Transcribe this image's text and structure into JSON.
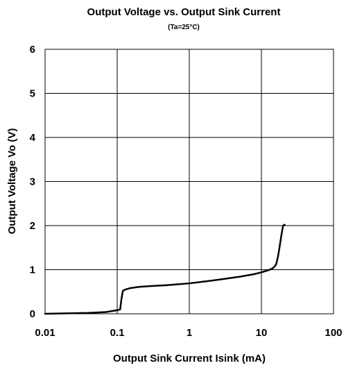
{
  "chart_data": {
    "type": "line",
    "title": "Output Voltage vs. Output Sink Current",
    "subtitle": "(Ta=25°C)",
    "xlabel": "Output Sink Current Isink (mA)",
    "ylabel": "Output Voltage Vo (V)",
    "x_scale": "log",
    "xlim": [
      0.01,
      100
    ],
    "ylim": [
      0,
      6
    ],
    "grid": true,
    "x_ticks": [
      "0.01",
      "0.1",
      "1",
      "10",
      "100"
    ],
    "y_ticks": [
      "0",
      "1",
      "2",
      "3",
      "4",
      "5",
      "6"
    ],
    "series": [
      {
        "x": [
          0.01,
          0.02,
          0.04,
          0.07,
          0.1,
          0.11,
          0.115,
          0.12,
          0.13,
          0.15,
          0.2,
          0.3,
          0.5,
          1,
          2,
          3,
          5,
          8,
          10,
          12,
          14,
          15,
          16,
          17,
          18,
          19,
          20,
          21
        ],
        "y": [
          0.0,
          0.01,
          0.02,
          0.04,
          0.08,
          0.1,
          0.35,
          0.52,
          0.55,
          0.58,
          0.61,
          0.63,
          0.65,
          0.69,
          0.75,
          0.79,
          0.84,
          0.9,
          0.94,
          0.98,
          1.02,
          1.06,
          1.12,
          1.3,
          1.55,
          1.8,
          2.0,
          2.02
        ]
      }
    ]
  }
}
